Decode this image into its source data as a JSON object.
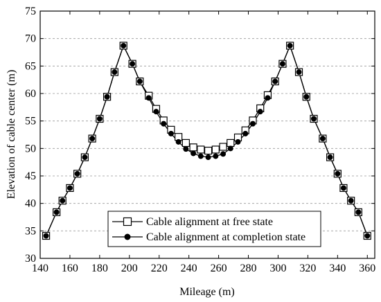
{
  "chart_data": {
    "type": "line",
    "title": "",
    "xlabel": "Mileage (m)",
    "ylabel": "Elevation of cable center (m)",
    "xlim": [
      140,
      365
    ],
    "ylim": [
      30,
      75
    ],
    "xticks": [
      140,
      160,
      180,
      200,
      220,
      240,
      260,
      280,
      300,
      320,
      340,
      360
    ],
    "yticks": [
      30,
      35,
      40,
      45,
      50,
      55,
      60,
      65,
      70,
      75
    ],
    "grid": "horizontal-dashed",
    "legend_position": "bottom-right",
    "series": [
      {
        "name": "Cable alignment at free state",
        "marker": "open-square",
        "color": "#000000",
        "x": [
          144,
          151,
          155,
          160,
          165,
          170,
          175,
          180,
          185,
          190,
          196,
          202,
          207,
          213,
          218,
          223,
          228,
          233,
          238,
          243,
          248,
          253,
          258,
          263,
          268,
          273,
          278,
          283,
          288,
          293,
          298,
          303,
          308,
          314,
          319,
          324,
          330,
          335,
          340,
          344,
          349,
          354,
          360
        ],
        "y": [
          34.1,
          38.4,
          40.5,
          42.8,
          45.4,
          48.4,
          51.8,
          55.4,
          59.4,
          63.9,
          68.7,
          65.4,
          62.2,
          59.6,
          57.2,
          55.1,
          53.4,
          52.1,
          51.0,
          50.2,
          49.8,
          49.6,
          49.8,
          50.3,
          51.0,
          52.0,
          53.3,
          55.1,
          57.3,
          59.7,
          62.2,
          65.4,
          68.7,
          63.9,
          59.4,
          55.4,
          51.8,
          48.4,
          45.4,
          42.8,
          40.5,
          38.4,
          34.1
        ]
      },
      {
        "name": "Cable alignment at completion state",
        "marker": "filled-circle",
        "color": "#000000",
        "x": [
          144,
          151,
          155,
          160,
          165,
          170,
          175,
          180,
          185,
          190,
          196,
          202,
          207,
          213,
          218,
          223,
          228,
          233,
          238,
          243,
          248,
          253,
          258,
          263,
          268,
          273,
          278,
          283,
          288,
          293,
          298,
          303,
          308,
          314,
          319,
          324,
          330,
          335,
          340,
          344,
          349,
          354,
          360
        ],
        "y": [
          34.1,
          38.4,
          40.5,
          42.8,
          45.4,
          48.4,
          51.8,
          55.4,
          59.4,
          63.9,
          68.7,
          65.4,
          62.2,
          59.2,
          56.7,
          54.5,
          52.7,
          51.2,
          49.9,
          49.1,
          48.6,
          48.4,
          48.6,
          49.0,
          50.0,
          51.2,
          52.7,
          54.5,
          56.7,
          59.2,
          62.2,
          65.4,
          68.7,
          63.9,
          59.4,
          55.4,
          51.8,
          48.4,
          45.4,
          42.8,
          40.5,
          38.4,
          34.1
        ]
      }
    ]
  }
}
